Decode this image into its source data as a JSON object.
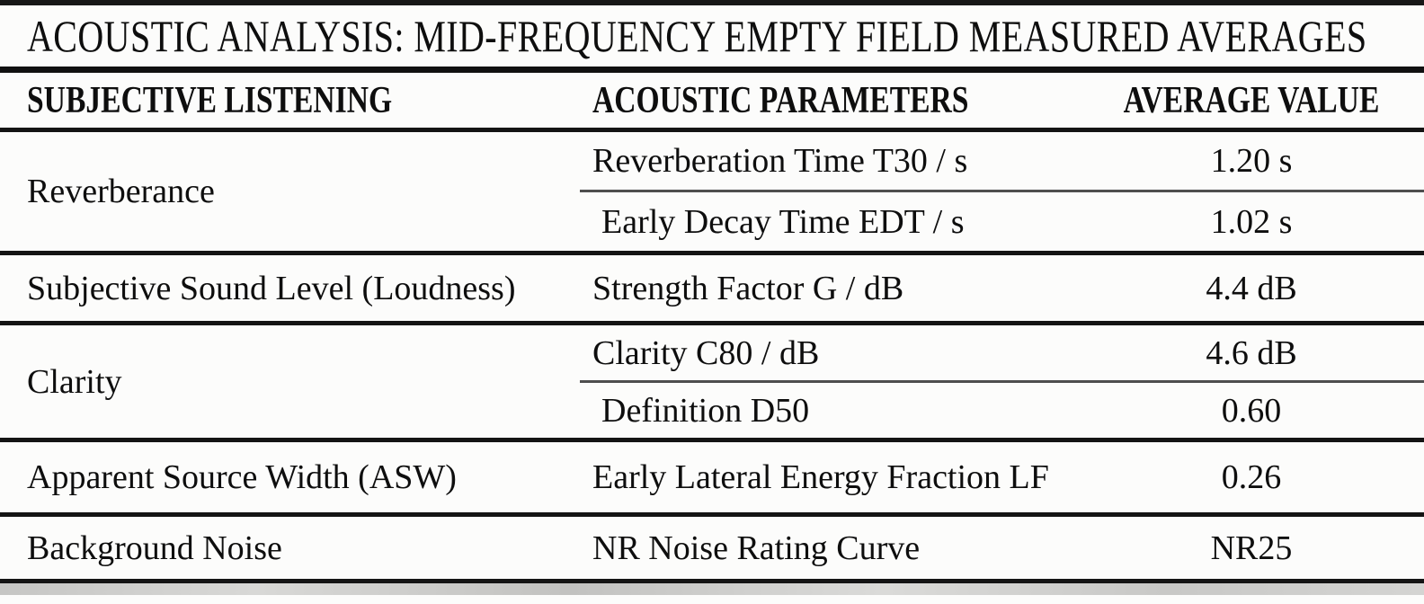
{
  "title": "ACOUSTIC ANALYSIS: MID-FREQUENCY EMPTY FIELD MEASURED AVERAGES",
  "columns": [
    "SUBJECTIVE LISTENING",
    "ACOUSTIC PARAMETERS",
    "AVERAGE VALUE"
  ],
  "groups": [
    {
      "listening": "Reverberance",
      "rows": [
        {
          "parameter": "Reverberation Time T30 / s",
          "value": "1.20 s"
        },
        {
          "parameter": "Early Decay Time EDT / s",
          "value": "1.02 s"
        }
      ]
    },
    {
      "listening": "Subjective Sound Level (Loudness)",
      "rows": [
        {
          "parameter": "Strength Factor G / dB",
          "value": "4.4 dB"
        }
      ]
    },
    {
      "listening": "Clarity",
      "rows": [
        {
          "parameter": "Clarity C80 / dB",
          "value": "4.6 dB"
        },
        {
          "parameter": "Definition D50",
          "value": "0.60"
        }
      ]
    },
    {
      "listening": "Apparent Source Width (ASW)",
      "rows": [
        {
          "parameter": "Early Lateral Energy Fraction LF",
          "value": "0.26"
        }
      ]
    },
    {
      "listening": "Background Noise",
      "rows": [
        {
          "parameter": "NR Noise Rating Curve",
          "value": "NR25"
        }
      ]
    }
  ],
  "colors": {
    "ink": "#111111",
    "paper": "#fcfcfb",
    "partial_divider": "#4e4e4e"
  }
}
